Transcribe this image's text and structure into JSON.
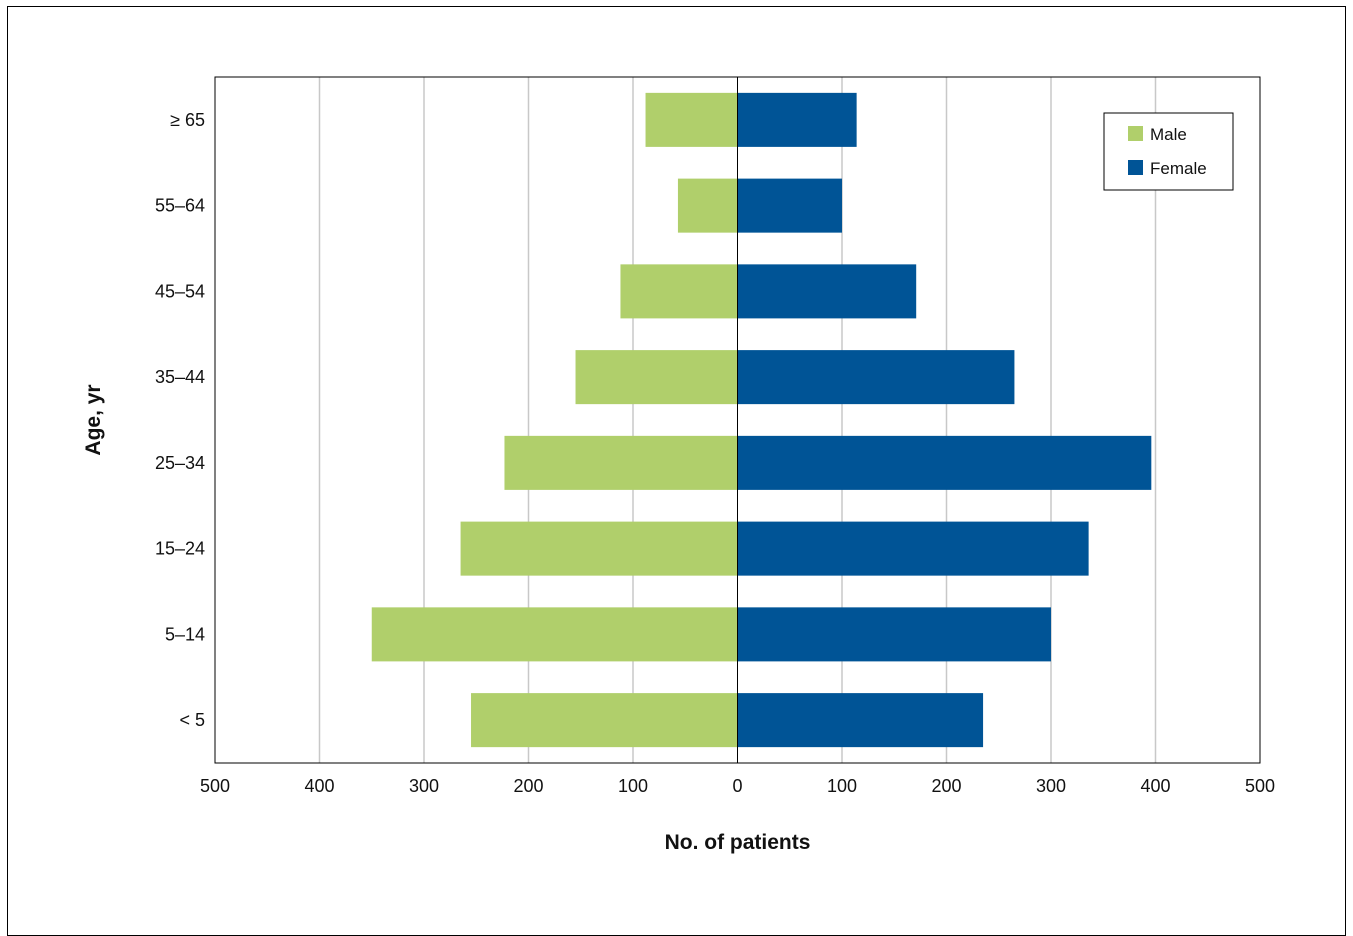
{
  "chart_data": {
    "type": "bar",
    "orientation": "horizontal-population-pyramid",
    "categories": [
      "< 5",
      "5–14",
      "15–24",
      "25–34",
      "35–44",
      "45–54",
      "55–64",
      "≥ 65"
    ],
    "series": [
      {
        "name": "Male",
        "color": "#b0cf6b",
        "values": [
          255,
          350,
          265,
          223,
          155,
          112,
          57,
          88
        ]
      },
      {
        "name": "Female",
        "color": "#005496",
        "values": [
          235,
          300,
          336,
          396,
          265,
          171,
          100,
          114
        ]
      }
    ],
    "xlabel": "No. of patients",
    "ylabel": "Age, yr",
    "xlim": [
      -500,
      500
    ],
    "xticks": [
      -500,
      -400,
      -300,
      -200,
      -100,
      0,
      100,
      200,
      300,
      400,
      500
    ],
    "xtick_labels": [
      "500",
      "400",
      "300",
      "200",
      "100",
      "0",
      "100",
      "200",
      "300",
      "400",
      "500"
    ],
    "grid": "vertical",
    "legend_position": "top-right"
  }
}
